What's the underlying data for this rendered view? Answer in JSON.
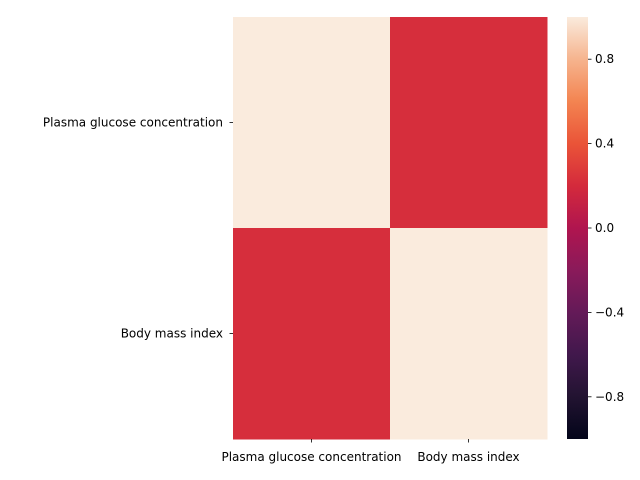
{
  "chart_data": {
    "type": "heatmap",
    "x_categories": [
      "Plasma glucose concentration",
      "Body mass index"
    ],
    "y_categories": [
      "Plasma glucose concentration",
      "Body mass index"
    ],
    "values": [
      [
        1.0,
        0.22
      ],
      [
        0.22,
        1.0
      ]
    ],
    "vmin": -1.0,
    "vmax": 1.0,
    "colormap": "rocket",
    "colorbar": {
      "ticks": [
        0.8,
        0.4,
        0.0,
        -0.4,
        -0.8
      ],
      "tick_labels": [
        "0.8",
        "0.4",
        "0.0",
        "−0.4",
        "−0.8"
      ]
    }
  }
}
